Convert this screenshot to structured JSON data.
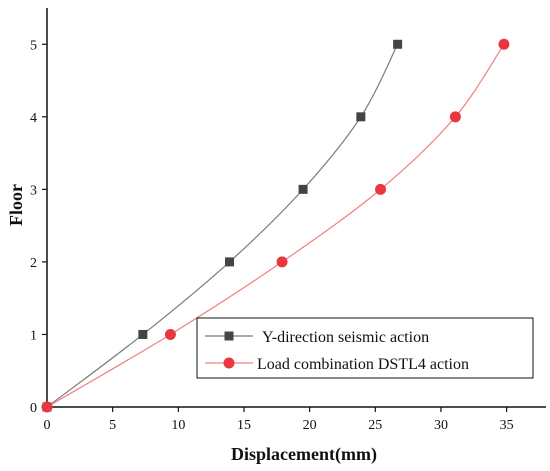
{
  "chart_data": {
    "type": "line",
    "xlabel": "Displacement(mm)",
    "ylabel": "Floor",
    "xlim": [
      0,
      38
    ],
    "ylim": [
      0,
      5.5
    ],
    "xticks": [
      "0",
      "5",
      "10",
      "15",
      "20",
      "25",
      "30",
      "35"
    ],
    "yticks": [
      "0",
      "1",
      "2",
      "3",
      "4",
      "5"
    ],
    "grid": false,
    "legend_position": "bottom-right",
    "series": [
      {
        "name": "Y-direction seismic action",
        "marker": "square",
        "line_color": "#7a7a7a",
        "marker_color": "#444444",
        "x": [
          0,
          7.3,
          13.9,
          19.5,
          23.9,
          26.7
        ],
        "y": [
          0,
          1,
          2,
          3,
          4,
          5
        ]
      },
      {
        "name": "Load combination DSTL4 action",
        "marker": "circle",
        "line_color": "#f08080",
        "marker_color": "#e8383d",
        "x": [
          0,
          9.4,
          17.9,
          25.4,
          31.1,
          34.8
        ],
        "y": [
          0,
          1,
          2,
          3,
          4,
          5
        ]
      }
    ]
  }
}
